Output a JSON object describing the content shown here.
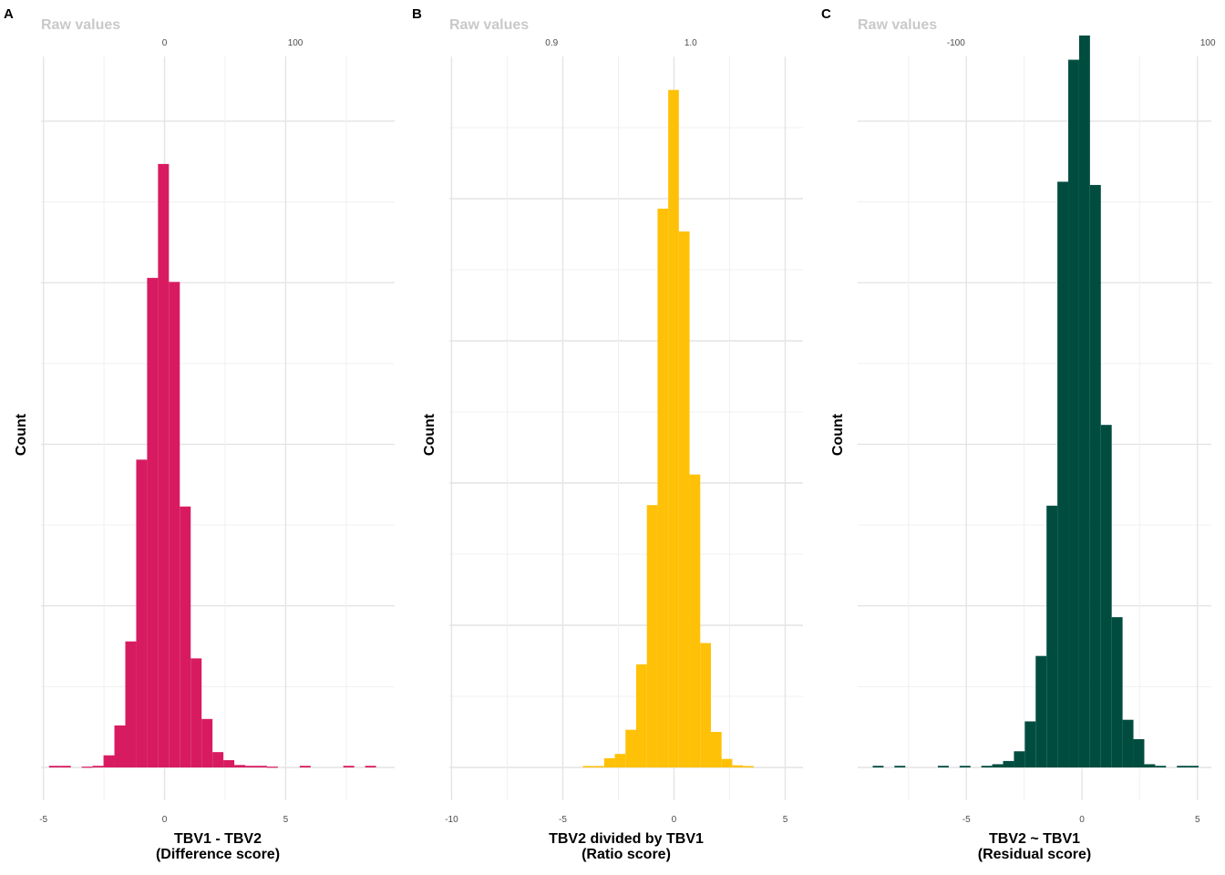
{
  "chart_data": [
    {
      "type": "bar",
      "panel_label": "A",
      "top_axis_title": "Raw values",
      "top_ticks": [
        {
          "value": 0,
          "label": "0",
          "pos": 0.0
        },
        {
          "value": 100,
          "label": "100",
          "pos": 5.4
        }
      ],
      "xlabel_line1": "TBV1 - TBV2",
      "xlabel_line2": "(Difference score)",
      "ylabel": "Count",
      "color": "#D81B60",
      "xlim": [
        -5.1,
        9.5
      ],
      "ylim": [
        0,
        0.88
      ],
      "x_ticks": [
        -5,
        0,
        5
      ],
      "x_minor": [
        -2.5,
        2.5,
        7.5
      ],
      "y_grid_major": [
        0,
        0.2,
        0.4,
        0.6,
        0.8
      ],
      "y_grid_minor": [
        0.1,
        0.3,
        0.5,
        0.7
      ],
      "bin_width": 0.45,
      "bins": [
        {
          "x0": -4.77,
          "h": 0.002
        },
        {
          "x0": -4.32,
          "h": 0.002
        },
        {
          "x0": -3.42,
          "h": 0.001
        },
        {
          "x0": -2.97,
          "h": 0.002
        },
        {
          "x0": -2.52,
          "h": 0.015
        },
        {
          "x0": -2.07,
          "h": 0.052
        },
        {
          "x0": -1.62,
          "h": 0.156
        },
        {
          "x0": -1.17,
          "h": 0.381
        },
        {
          "x0": -0.72,
          "h": 0.606
        },
        {
          "x0": -0.27,
          "h": 0.747
        },
        {
          "x0": 0.18,
          "h": 0.601
        },
        {
          "x0": 0.63,
          "h": 0.323
        },
        {
          "x0": 1.08,
          "h": 0.135
        },
        {
          "x0": 1.53,
          "h": 0.06
        },
        {
          "x0": 1.98,
          "h": 0.019
        },
        {
          "x0": 2.43,
          "h": 0.009
        },
        {
          "x0": 2.88,
          "h": 0.003
        },
        {
          "x0": 3.33,
          "h": 0.002
        },
        {
          "x0": 3.78,
          "h": 0.002
        },
        {
          "x0": 4.23,
          "h": 0.001
        },
        {
          "x0": 5.58,
          "h": 0.002
        },
        {
          "x0": 7.38,
          "h": 0.002
        },
        {
          "x0": 8.28,
          "h": 0.002
        }
      ]
    },
    {
      "type": "bar",
      "panel_label": "B",
      "top_axis_title": "Raw values",
      "top_ticks": [
        {
          "value": 0.9,
          "label": "0.9",
          "pos": -5.5
        },
        {
          "value": 1.0,
          "label": "1.0",
          "pos": 0.75
        }
      ],
      "xlabel_line1": "TBV2 divided by TBV1",
      "xlabel_line2": "(Ratio score)",
      "ylabel": "Count",
      "color": "#FFC107",
      "xlim": [
        -10.1,
        5.8
      ],
      "ylim": [
        0,
        1.0
      ],
      "x_ticks": [
        -10,
        -5,
        0,
        5
      ],
      "x_minor": [
        -7.5,
        -2.5,
        2.5
      ],
      "y_grid_major": [
        0,
        0.2,
        0.4,
        0.6,
        0.8
      ],
      "y_grid_minor": [
        0.1,
        0.3,
        0.5,
        0.7,
        0.9
      ],
      "bin_width": 0.48,
      "bins": [
        {
          "x0": -4.1,
          "h": 0.002
        },
        {
          "x0": -3.62,
          "h": 0.002
        },
        {
          "x0": -3.14,
          "h": 0.013
        },
        {
          "x0": -2.66,
          "h": 0.019
        },
        {
          "x0": -2.18,
          "h": 0.053
        },
        {
          "x0": -1.7,
          "h": 0.145
        },
        {
          "x0": -1.22,
          "h": 0.369
        },
        {
          "x0": -0.74,
          "h": 0.786
        },
        {
          "x0": -0.26,
          "h": 0.953
        },
        {
          "x0": 0.22,
          "h": 0.754
        },
        {
          "x0": 0.7,
          "h": 0.412
        },
        {
          "x0": 1.18,
          "h": 0.175
        },
        {
          "x0": 1.66,
          "h": 0.05
        },
        {
          "x0": 2.14,
          "h": 0.012
        },
        {
          "x0": 2.62,
          "h": 0.003
        },
        {
          "x0": 3.1,
          "h": 0.002
        }
      ]
    },
    {
      "type": "bar",
      "panel_label": "C",
      "top_axis_title": "Raw values",
      "top_ticks": [
        {
          "value": -100,
          "label": "-100",
          "pos": -5.45
        },
        {
          "value": 0,
          "label": "0",
          "pos": 0.0
        },
        {
          "value": 100,
          "label": "100",
          "pos": 5.45
        }
      ],
      "xlabel_line1": "TBV2 ~ TBV1",
      "xlabel_line2": "(Residual score)",
      "ylabel": "Count",
      "color": "#004D40",
      "xlim": [
        -9.7,
        5.6
      ],
      "ylim": [
        0,
        0.88
      ],
      "x_ticks": [
        -5,
        0,
        5
      ],
      "x_minor": [
        -7.5,
        -2.5,
        2.5
      ],
      "y_grid_major": [
        0,
        0.2,
        0.4,
        0.6,
        0.8
      ],
      "y_grid_minor": [
        0.1,
        0.3,
        0.5,
        0.7
      ],
      "bin_width": 0.47,
      "bins": [
        {
          "x0": -9.05,
          "h": 0.002
        },
        {
          "x0": -8.11,
          "h": 0.002
        },
        {
          "x0": -6.23,
          "h": 0.002
        },
        {
          "x0": -5.29,
          "h": 0.002
        },
        {
          "x0": -4.35,
          "h": 0.002
        },
        {
          "x0": -3.88,
          "h": 0.004
        },
        {
          "x0": -3.41,
          "h": 0.008
        },
        {
          "x0": -2.94,
          "h": 0.02
        },
        {
          "x0": -2.47,
          "h": 0.057
        },
        {
          "x0": -2.0,
          "h": 0.138
        },
        {
          "x0": -1.53,
          "h": 0.324
        },
        {
          "x0": -1.06,
          "h": 0.725
        },
        {
          "x0": -0.59,
          "h": 0.876
        },
        {
          "x0": -0.12,
          "h": 0.906
        },
        {
          "x0": 0.35,
          "h": 0.721
        },
        {
          "x0": 0.82,
          "h": 0.424
        },
        {
          "x0": 1.29,
          "h": 0.186
        },
        {
          "x0": 1.76,
          "h": 0.059
        },
        {
          "x0": 2.23,
          "h": 0.035
        },
        {
          "x0": 2.7,
          "h": 0.004
        },
        {
          "x0": 3.17,
          "h": 0.002
        },
        {
          "x0": 4.11,
          "h": 0.002
        },
        {
          "x0": 4.58,
          "h": 0.002
        }
      ]
    }
  ]
}
